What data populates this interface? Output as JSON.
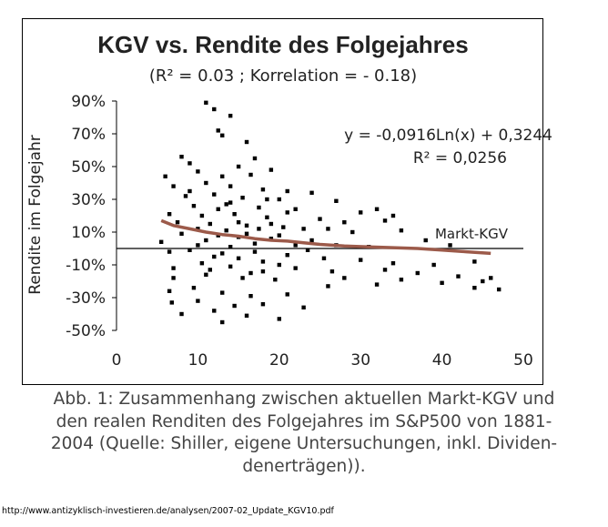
{
  "chart_data": {
    "type": "scatter",
    "title": "KGV vs. Rendite des Folgejahres",
    "subtitle": "(R² = 0.03 ; Korrelation = - 0.18)",
    "xlabel": "",
    "ylabel": "Rendite im Folgejahr",
    "xlim": [
      0,
      50
    ],
    "ylim": [
      -50,
      90
    ],
    "x_ticks": [
      "0",
      "10",
      "20",
      "30",
      "40",
      "50"
    ],
    "y_ticks": [
      "90%",
      "70%",
      "50%",
      "30%",
      "10%",
      "-10%",
      "-30%",
      "-50%"
    ],
    "reference_line": {
      "y": 0,
      "label": "Markt-KGV"
    },
    "trendline": {
      "type": "logarithmic",
      "equation": "y = -0,0916Ln(x) + 0,3244",
      "r2_label": "R² = 0,0256",
      "x": [
        5.5,
        7,
        9,
        11,
        13,
        15,
        17,
        19,
        21,
        23,
        25,
        28,
        31,
        34,
        37,
        40,
        43,
        46
      ],
      "y": [
        17,
        14,
        12,
        10,
        8.5,
        7.5,
        6,
        5,
        4.5,
        3.5,
        2.5,
        1.5,
        1,
        0.5,
        0,
        -1,
        -2,
        -3
      ]
    },
    "series": [
      {
        "values": [
          [
            11,
            89
          ],
          [
            12,
            85
          ],
          [
            14,
            81
          ],
          [
            12.5,
            72
          ],
          [
            13,
            69
          ],
          [
            16,
            65
          ],
          [
            8,
            56
          ],
          [
            17,
            55
          ],
          [
            9,
            52
          ],
          [
            15,
            50
          ],
          [
            10,
            47
          ],
          [
            19,
            48
          ],
          [
            6,
            44
          ],
          [
            13,
            44
          ],
          [
            16.5,
            45
          ],
          [
            11,
            40
          ],
          [
            7,
            38
          ],
          [
            14,
            38
          ],
          [
            18,
            36
          ],
          [
            21,
            35
          ],
          [
            24,
            34
          ],
          [
            8.5,
            32
          ],
          [
            12,
            33
          ],
          [
            15.5,
            31
          ],
          [
            20,
            30
          ],
          [
            27,
            29
          ],
          [
            9.5,
            26
          ],
          [
            13.5,
            27
          ],
          [
            17.5,
            25
          ],
          [
            22,
            24
          ],
          [
            30,
            22
          ],
          [
            32,
            24
          ],
          [
            34,
            20
          ],
          [
            6.5,
            21
          ],
          [
            10.5,
            20
          ],
          [
            14.5,
            21
          ],
          [
            18.5,
            19
          ],
          [
            25,
            18
          ],
          [
            28,
            16
          ],
          [
            33,
            17
          ],
          [
            7.5,
            16
          ],
          [
            11.5,
            15
          ],
          [
            16,
            14
          ],
          [
            20.5,
            13
          ],
          [
            23,
            12
          ],
          [
            26,
            12
          ],
          [
            29,
            10
          ],
          [
            35,
            11
          ],
          [
            5.5,
            4
          ],
          [
            8,
            9
          ],
          [
            12.5,
            8
          ],
          [
            15,
            7
          ],
          [
            19,
            6
          ],
          [
            24,
            5
          ],
          [
            27,
            2
          ],
          [
            31,
            1
          ],
          [
            38,
            5
          ],
          [
            41,
            2
          ],
          [
            6.5,
            -2
          ],
          [
            9,
            -1
          ],
          [
            13,
            -3
          ],
          [
            17,
            -2
          ],
          [
            21,
            -4
          ],
          [
            25.5,
            -6
          ],
          [
            30,
            -7
          ],
          [
            34,
            -9
          ],
          [
            39,
            -10
          ],
          [
            44,
            -8
          ],
          [
            7,
            -12
          ],
          [
            10.5,
            -9
          ],
          [
            14,
            -11
          ],
          [
            18,
            -14
          ],
          [
            22,
            -12
          ],
          [
            26.5,
            -14
          ],
          [
            33,
            -13
          ],
          [
            37,
            -15
          ],
          [
            42,
            -17
          ],
          [
            45,
            -20
          ],
          [
            46,
            -18
          ],
          [
            7,
            -18
          ],
          [
            11,
            -16
          ],
          [
            15.5,
            -18
          ],
          [
            19.5,
            -19
          ],
          [
            28,
            -18
          ],
          [
            32,
            -22
          ],
          [
            40,
            -21
          ],
          [
            44,
            -24
          ],
          [
            47,
            -25
          ],
          [
            6.5,
            -26
          ],
          [
            9.5,
            -24
          ],
          [
            13,
            -27
          ],
          [
            16.5,
            -29
          ],
          [
            21,
            -28
          ],
          [
            26,
            -23
          ],
          [
            35,
            -19
          ],
          [
            6.8,
            -33
          ],
          [
            10,
            -32
          ],
          [
            14.5,
            -35
          ],
          [
            18,
            -34
          ],
          [
            23,
            -36
          ],
          [
            8,
            -40
          ],
          [
            12,
            -38
          ],
          [
            16,
            -41
          ],
          [
            20,
            -43
          ],
          [
            13,
            -45
          ],
          [
            10,
            2
          ],
          [
            11,
            5
          ],
          [
            12,
            -5
          ],
          [
            13.5,
            11
          ],
          [
            14,
            1
          ],
          [
            15,
            -6
          ],
          [
            16,
            9
          ],
          [
            17,
            3
          ],
          [
            18,
            -8
          ],
          [
            19,
            15
          ],
          [
            20,
            8
          ],
          [
            21,
            22
          ],
          [
            22,
            2
          ],
          [
            23.5,
            -1
          ],
          [
            9,
            35
          ],
          [
            10,
            12
          ],
          [
            11.5,
            -13
          ],
          [
            12.5,
            24
          ],
          [
            14,
            28
          ],
          [
            15,
            16
          ],
          [
            16.5,
            -15
          ],
          [
            17.5,
            12
          ],
          [
            18.5,
            30
          ],
          [
            20,
            -10
          ]
        ]
      }
    ]
  },
  "caption": {
    "line1": "Abb. 1: Zusammenhang zwischen aktuellen Markt-KGV und",
    "line2": "den realen Renditen des Folgejahres im S&P500 von 1881-",
    "line3": "2004 (Quelle: Shiller, eigene Untersuchungen, inkl. Dividen-",
    "line4": "denerträgen))."
  },
  "source_url": "http://www.antizyklisch-investieren.de/analysen/2007-02_Update_KGV10.pdf",
  "colors": {
    "points": "#000000",
    "trendline": "#9c5a4a",
    "axis": "#000000"
  }
}
